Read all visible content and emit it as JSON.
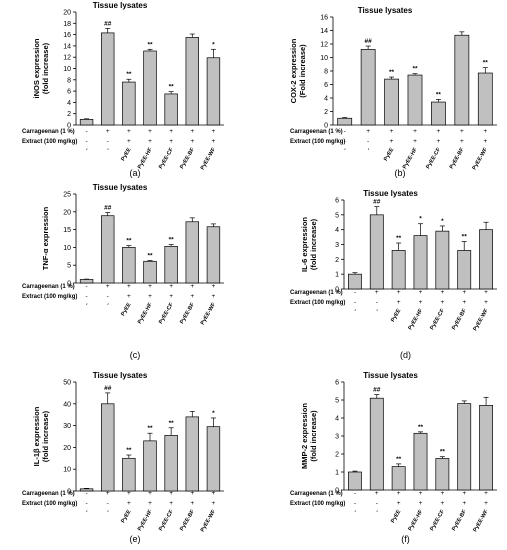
{
  "figure": {
    "row_labels": [
      "Carrageenan (1 %)",
      "Extract (100 mg/kg)"
    ],
    "categories": [
      "-",
      "-",
      "PyEE",
      "PyEE-HF",
      "PyEE-CF",
      "PyEE-BF",
      "PyEE-WF"
    ],
    "carrageenan_marks": [
      "-",
      "+",
      "+",
      "+",
      "+",
      "+",
      "+"
    ],
    "extract_marks": [
      "-",
      "-",
      "+",
      "+",
      "+",
      "+",
      "+"
    ]
  },
  "chart_data": [
    {
      "type": "bar",
      "panel_label": "(a)",
      "title": "Tissue lysates",
      "ylabel_lines": [
        "iNOS expression",
        "(fold increase)"
      ],
      "ylim": [
        0,
        20
      ],
      "yticks": [
        0,
        2,
        4,
        6,
        8,
        10,
        12,
        14,
        16,
        18,
        20
      ],
      "categories": [
        "-",
        "-",
        "PyEE",
        "PyEE-HF",
        "PyEE-CF",
        "PyEE-BF",
        "PyEE-WF"
      ],
      "values": [
        1.0,
        16.3,
        7.6,
        13.1,
        5.5,
        15.5,
        11.9
      ],
      "errors": [
        0.1,
        0.8,
        0.5,
        0.3,
        0.4,
        0.6,
        1.5
      ],
      "annotations": [
        "",
        "##",
        "**",
        "**",
        "**",
        "",
        "*"
      ]
    },
    {
      "type": "bar",
      "panel_label": "(b)",
      "title": "Tissue lysates",
      "ylabel_lines": [
        "COX-2 expression",
        "(Fold increase)"
      ],
      "ylim": [
        0,
        16
      ],
      "yticks": [
        0,
        2,
        4,
        6,
        8,
        10,
        12,
        14,
        16
      ],
      "categories": [
        "-",
        "-",
        "PyEE",
        "PyEE-HF",
        "PyEE-CF",
        "PyEE-BF",
        "PyEE-WF"
      ],
      "values": [
        1.0,
        11.2,
        6.8,
        7.4,
        3.4,
        13.3,
        7.7
      ],
      "errors": [
        0.1,
        0.5,
        0.3,
        0.2,
        0.4,
        0.5,
        0.8
      ],
      "annotations": [
        "",
        "##",
        "**",
        "**",
        "**",
        "",
        "**"
      ]
    },
    {
      "type": "bar",
      "panel_label": "(c)",
      "title": "Tissue lysates",
      "ylabel_lines": [
        "TNF-α expression"
      ],
      "ylim": [
        0,
        25
      ],
      "yticks": [
        0,
        5,
        10,
        15,
        20,
        25
      ],
      "categories": [
        "-",
        "-",
        "PyEE",
        "PyEE-HF",
        "PyEE-CF",
        "PyEE-BF",
        "PyEE-WF"
      ],
      "values": [
        1.0,
        18.9,
        10.0,
        6.1,
        10.3,
        17.2,
        15.8
      ],
      "errors": [
        0.1,
        0.9,
        0.5,
        0.2,
        0.5,
        1.1,
        0.8
      ],
      "annotations": [
        "",
        "##",
        "**",
        "**",
        "**",
        "",
        ""
      ]
    },
    {
      "type": "bar",
      "panel_label": "(d)",
      "title": "Tissue lysates",
      "ylabel_lines": [
        "IL-6 expression",
        "(fold increase)"
      ],
      "ylim": [
        0,
        6
      ],
      "yticks": [
        0,
        1,
        2,
        3,
        4,
        5,
        6
      ],
      "categories": [
        "-",
        "-",
        "PyEE",
        "PyEE-HF",
        "PyEE-CF",
        "PyEE-BF",
        "PyEE-WF"
      ],
      "values": [
        1.0,
        5.0,
        2.6,
        3.6,
        3.9,
        2.6,
        4.0
      ],
      "errors": [
        0.1,
        0.55,
        0.5,
        0.8,
        0.35,
        0.6,
        0.5
      ],
      "annotations": [
        "",
        "##",
        "**",
        "*",
        "*",
        "**",
        ""
      ]
    },
    {
      "type": "bar",
      "panel_label": "(e)",
      "title": "Tissue lysates",
      "ylabel_lines": [
        "IL-1β expression",
        "(fold increase)"
      ],
      "ylim": [
        0,
        50
      ],
      "yticks": [
        0,
        10,
        20,
        30,
        40,
        50
      ],
      "categories": [
        "-",
        "-",
        "PyEE",
        "PyEE-HF",
        "PyEE-CF",
        "PyEE-BF",
        "PyEE-WF"
      ],
      "values": [
        1.0,
        40.0,
        15.0,
        23.0,
        25.5,
        34.0,
        29.5
      ],
      "errors": [
        0.2,
        5.0,
        1.5,
        3.5,
        3.5,
        2.5,
        4.0
      ],
      "annotations": [
        "",
        "##",
        "**",
        "**",
        "**",
        "",
        "*"
      ]
    },
    {
      "type": "bar",
      "panel_label": "(f)",
      "title": "Tissue lysates",
      "ylabel_lines": [
        "MMP-2 expression",
        "(fold increase)"
      ],
      "ylim": [
        0,
        6
      ],
      "yticks": [
        0,
        1,
        2,
        3,
        4,
        5,
        6
      ],
      "categories": [
        "-",
        "-",
        "PyEE",
        "PyEE-HF",
        "PyEE-CF",
        "PyEE-BF",
        "PyEE-WF"
      ],
      "values": [
        1.0,
        5.1,
        1.3,
        3.15,
        1.75,
        4.8,
        4.7
      ],
      "errors": [
        0.05,
        0.2,
        0.15,
        0.08,
        0.1,
        0.15,
        0.45
      ],
      "annotations": [
        "",
        "##",
        "**",
        "**",
        "**",
        "",
        ""
      ]
    }
  ]
}
